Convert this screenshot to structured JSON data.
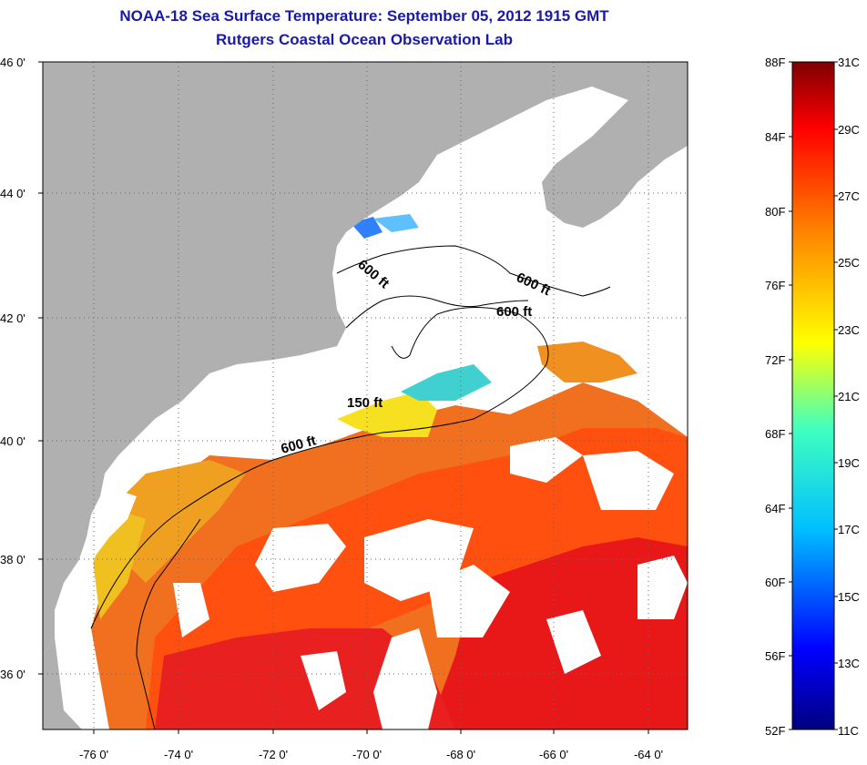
{
  "header": {
    "title": "NOAA-18 Sea Surface Temperature:  September 05, 2012 1915 GMT",
    "subtitle": "Rutgers Coastal Ocean Observation Lab"
  },
  "map": {
    "lat_labels": [
      "46 0'",
      "44 0'",
      "42 0'",
      "40 0'",
      "38 0'",
      "36 0'"
    ],
    "lon_labels": [
      "-76 0'",
      "-74 0'",
      "-72 0'",
      "-70 0'",
      "-68 0'",
      "-66 0'",
      "-64 0'"
    ],
    "contour_labels": [
      "600 ft",
      "600 ft",
      "600 ft",
      "150 ft",
      "600 ft"
    ],
    "colors": {
      "land": "#b0b0b0",
      "no_data": "#ffffff",
      "frame": "#000000"
    }
  },
  "colorbar": {
    "f_labels": [
      "88F",
      "84F",
      "80F",
      "76F",
      "72F",
      "68F",
      "64F",
      "60F",
      "56F",
      "52F"
    ],
    "c_labels": [
      "31C",
      "29C",
      "27C",
      "25C",
      "23C",
      "21C",
      "19C",
      "17C",
      "15C",
      "13C",
      "11C"
    ]
  }
}
